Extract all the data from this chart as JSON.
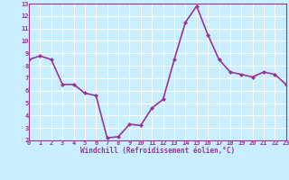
{
  "x": [
    0,
    1,
    2,
    3,
    4,
    5,
    6,
    7,
    8,
    9,
    10,
    11,
    12,
    13,
    14,
    15,
    16,
    17,
    18,
    19,
    20,
    21,
    22,
    23
  ],
  "y": [
    8.5,
    8.8,
    8.5,
    6.5,
    6.5,
    5.8,
    5.6,
    2.2,
    2.3,
    3.3,
    3.2,
    4.6,
    5.3,
    8.5,
    11.5,
    12.8,
    10.5,
    8.5,
    7.5,
    7.3,
    7.1,
    7.5,
    7.3,
    6.5
  ],
  "line_color": "#993399",
  "marker": "D",
  "marker_size": 2.0,
  "xlabel": "Windchill (Refroidissement éolien,°C)",
  "ylim": [
    2,
    13
  ],
  "xlim": [
    0,
    23
  ],
  "yticks": [
    2,
    3,
    4,
    5,
    6,
    7,
    8,
    9,
    10,
    11,
    12,
    13
  ],
  "xticks": [
    0,
    1,
    2,
    3,
    4,
    5,
    6,
    7,
    8,
    9,
    10,
    11,
    12,
    13,
    14,
    15,
    16,
    17,
    18,
    19,
    20,
    21,
    22,
    23
  ],
  "bg_color": "#c9eeff",
  "grid_color": "#ffffff",
  "tick_color": "#993399",
  "label_color": "#993399",
  "linewidth": 1.2,
  "tick_fontsize": 5.0,
  "xlabel_fontsize": 5.5
}
